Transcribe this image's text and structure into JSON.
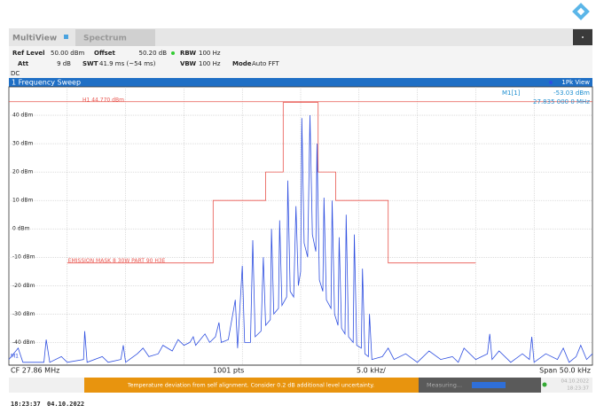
{
  "header": {
    "tabs": [
      "MultiView",
      "Spectrum"
    ]
  },
  "settings": {
    "rows": [
      [
        "Ref Level",
        "50.00 dBm",
        "Offset",
        "50.20 dB",
        "RBW",
        "100 Hz"
      ],
      [
        "Att",
        "9 dB",
        "SWT",
        "41.9 ms (~54 ms)",
        "VBW",
        "100 Hz",
        "Mode",
        "Auto FFT"
      ]
    ],
    "coupling": "DC"
  },
  "window": {
    "title": "1 Frequency Sweep",
    "view": "1Pk View"
  },
  "marker": {
    "name": "M1[1]",
    "level": "-53.03 dBm",
    "freq": "27.835 000 0 MHz",
    "label": "M1"
  },
  "chart_data": {
    "type": "line",
    "xlim": [
      -25,
      25
    ],
    "ylim": [
      -48,
      50
    ],
    "yticks": [
      {
        "value": 40,
        "label": "40 dBm"
      },
      {
        "value": 30,
        "label": "30 dBm"
      },
      {
        "value": 20,
        "label": "20 dBm"
      },
      {
        "value": 10,
        "label": "10 dBm"
      },
      {
        "value": 0,
        "label": "0 dBm"
      },
      {
        "value": -10,
        "label": "-10 dBm"
      },
      {
        "value": -20,
        "label": "-20 dBm"
      },
      {
        "value": -30,
        "label": "-30 dBm"
      },
      {
        "value": -40,
        "label": "-40 dBm"
      }
    ],
    "xgrid": [
      -20,
      -15,
      -10,
      -5,
      0,
      5,
      10,
      15,
      20
    ],
    "grid": true,
    "limit_line": {
      "label": "H1 44.770 dBm",
      "value": 44.77,
      "color": "#e8554e"
    },
    "mask": {
      "label": "EMISSION MASK 8 30W PART 90 H3E",
      "color": "#e8554e",
      "x": [
        -20,
        -7.5,
        -7.5,
        -3,
        -3,
        -1.5,
        -1.5,
        1.5,
        1.5,
        3,
        3,
        7.5,
        7.5,
        15
      ],
      "y": [
        -12,
        -12,
        10,
        10,
        20,
        20,
        44.5,
        44.5,
        20,
        20,
        10,
        10,
        -12,
        -12
      ]
    },
    "trace": {
      "color": "#2f4fe0",
      "x": [
        -25,
        -24.2,
        -23.8,
        -22,
        -21.8,
        -21.5,
        -20.5,
        -20,
        -18.6,
        -18.5,
        -18.3,
        -17,
        -16.5,
        -15.4,
        -15.2,
        -15,
        -14,
        -13.5,
        -13,
        -12.2,
        -11.8,
        -11,
        -10.5,
        -10,
        -9.5,
        -9.2,
        -9,
        -8.6,
        -8.2,
        -7.8,
        -7.3,
        -7,
        -6.8,
        -6.2,
        -5.6,
        -5.4,
        -5,
        -4.8,
        -4.3,
        -4.1,
        -3.9,
        -3.4,
        -3.2,
        -3,
        -2.6,
        -2.5,
        -2.3,
        -1.9,
        -1.8,
        -1.6,
        -1.2,
        -1.1,
        -0.9,
        -0.6,
        -0.4,
        -0.2,
        0,
        0.1,
        0.3,
        0.6,
        0.8,
        1,
        1.3,
        1.4,
        1.6,
        1.9,
        2,
        2.2,
        2.6,
        2.7,
        2.9,
        3.2,
        3.3,
        3.5,
        3.8,
        3.9,
        4.1,
        4.5,
        4.6,
        4.8,
        5.2,
        5.3,
        5.5,
        5.8,
        5.9,
        6.1,
        7,
        7.5,
        8,
        9,
        10,
        11,
        12,
        13,
        13.5,
        14,
        15,
        16,
        16.2,
        16.4,
        17,
        18,
        19,
        19.6,
        19.8,
        20,
        21,
        22,
        22.5,
        23,
        23.6,
        24,
        24.5,
        25
      ],
      "y": [
        -46,
        -42,
        -47,
        -47,
        -39,
        -47,
        -45,
        -47,
        -46,
        -36,
        -47,
        -45,
        -47,
        -46,
        -41,
        -47,
        -44,
        -42,
        -45,
        -44,
        -41,
        -43,
        -39,
        -41,
        -40,
        -38,
        -41,
        -39,
        -37,
        -40,
        -38,
        -33,
        -40,
        -39,
        -25,
        -42,
        -13,
        -40,
        -40,
        -4,
        -38,
        -36,
        -10,
        -34,
        -32,
        0,
        -30,
        -28,
        3,
        -27,
        -24,
        17,
        -22,
        -24,
        8,
        -20,
        -15,
        39,
        -5,
        -10,
        40,
        -2,
        -8,
        30,
        -18,
        -22,
        11,
        -25,
        -28,
        10,
        -30,
        -34,
        -3,
        -35,
        -37,
        5,
        -38,
        -40,
        -2,
        -41,
        -42,
        -14,
        -44,
        -45,
        -30,
        -46,
        -45,
        -42,
        -46,
        -44,
        -47,
        -43,
        -46,
        -45,
        -47,
        -42,
        -46,
        -44,
        -37,
        -46,
        -43,
        -47,
        -44,
        -46,
        -38,
        -47,
        -44,
        -46,
        -42,
        -47,
        -45,
        -41,
        -46,
        -44
      ]
    }
  },
  "footer": {
    "cf": "CF 27.86 MHz",
    "points": "1001 pts",
    "div": "5.0 kHz/",
    "span": "Span 50.0 kHz"
  },
  "status": {
    "message": "Temperature deviation from self alignment. Consider 0.2 dB additional level uncertainty.",
    "measuring": "Measuring...",
    "date": "04.10.2022",
    "time": "18:23:37"
  },
  "caption": [
    "18:23:37",
    "04.10.2022"
  ]
}
